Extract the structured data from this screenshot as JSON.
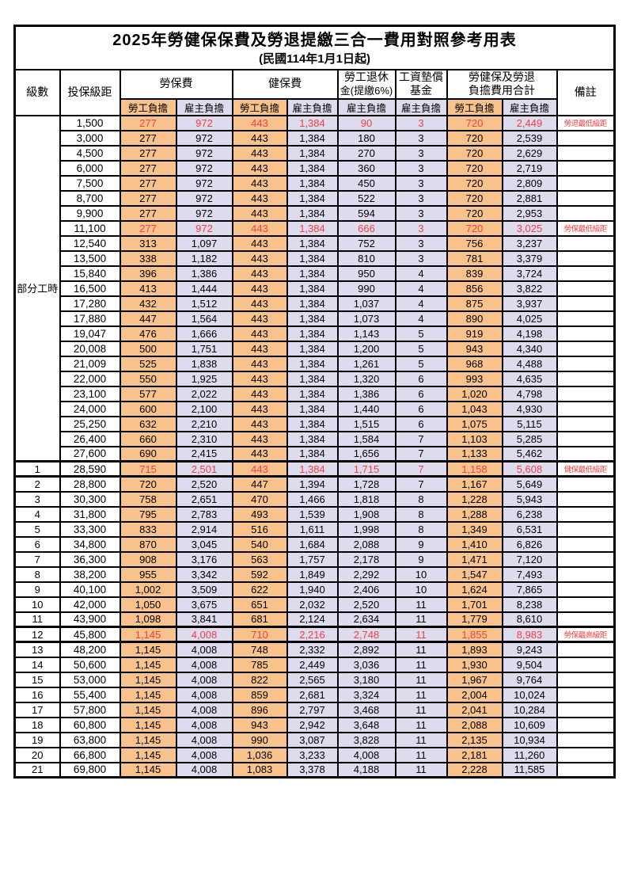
{
  "page": {
    "title": "2025年勞健保保費及勞退提繳三合一費用對照參考用表",
    "subtitle": "(民國114年1月1日起)"
  },
  "colors": {
    "employee_share_bg": "#f8c28c",
    "employer_share_bg": "#dedbee",
    "highlight_text": "#f03e42",
    "border": "#000000"
  },
  "header": {
    "level": "級數",
    "bracket": "投保級距",
    "labor_fee": "勞保費",
    "health_fee": "健保費",
    "pension": [
      "勞工退休",
      "金(提繳6%)"
    ],
    "wage_fund": [
      "工資墊償",
      "基金"
    ],
    "total": [
      "勞健保及勞退",
      "負擔費用合計"
    ],
    "remark": "備註",
    "employee_share": "勞工負擔",
    "employer_share": "雇主負擔"
  },
  "part_time_label": "部分工時",
  "part_time_rowspan": 23,
  "rows": [
    {
      "bracket": "1,500",
      "values": [
        "277",
        "972",
        "443",
        "1,384",
        "90",
        "3",
        "720",
        "2,449"
      ],
      "remark": "勞退最低級距",
      "highlight": true
    },
    {
      "bracket": "3,000",
      "values": [
        "277",
        "972",
        "443",
        "1,384",
        "180",
        "3",
        "720",
        "2,539"
      ]
    },
    {
      "bracket": "4,500",
      "values": [
        "277",
        "972",
        "443",
        "1,384",
        "270",
        "3",
        "720",
        "2,629"
      ]
    },
    {
      "bracket": "6,000",
      "values": [
        "277",
        "972",
        "443",
        "1,384",
        "360",
        "3",
        "720",
        "2,719"
      ]
    },
    {
      "bracket": "7,500",
      "values": [
        "277",
        "972",
        "443",
        "1,384",
        "450",
        "3",
        "720",
        "2,809"
      ]
    },
    {
      "bracket": "8,700",
      "values": [
        "277",
        "972",
        "443",
        "1,384",
        "522",
        "3",
        "720",
        "2,881"
      ]
    },
    {
      "bracket": "9,900",
      "values": [
        "277",
        "972",
        "443",
        "1,384",
        "594",
        "3",
        "720",
        "2,953"
      ]
    },
    {
      "bracket": "11,100",
      "values": [
        "277",
        "972",
        "443",
        "1,384",
        "666",
        "3",
        "720",
        "3,025"
      ],
      "remark": "勞保最低級距",
      "highlight": true
    },
    {
      "bracket": "12,540",
      "values": [
        "313",
        "1,097",
        "443",
        "1,384",
        "752",
        "3",
        "756",
        "3,237"
      ]
    },
    {
      "bracket": "13,500",
      "values": [
        "338",
        "1,182",
        "443",
        "1,384",
        "810",
        "3",
        "781",
        "3,379"
      ]
    },
    {
      "bracket": "15,840",
      "values": [
        "396",
        "1,386",
        "443",
        "1,384",
        "950",
        "4",
        "839",
        "3,724"
      ]
    },
    {
      "bracket": "16,500",
      "values": [
        "413",
        "1,444",
        "443",
        "1,384",
        "990",
        "4",
        "856",
        "3,822"
      ]
    },
    {
      "bracket": "17,280",
      "values": [
        "432",
        "1,512",
        "443",
        "1,384",
        "1,037",
        "4",
        "875",
        "3,937"
      ]
    },
    {
      "bracket": "17,880",
      "values": [
        "447",
        "1,564",
        "443",
        "1,384",
        "1,073",
        "4",
        "890",
        "4,025"
      ]
    },
    {
      "bracket": "19,047",
      "values": [
        "476",
        "1,666",
        "443",
        "1,384",
        "1,143",
        "5",
        "919",
        "4,198"
      ]
    },
    {
      "bracket": "20,008",
      "values": [
        "500",
        "1,751",
        "443",
        "1,384",
        "1,200",
        "5",
        "943",
        "4,340"
      ]
    },
    {
      "bracket": "21,009",
      "values": [
        "525",
        "1,838",
        "443",
        "1,384",
        "1,261",
        "5",
        "968",
        "4,488"
      ]
    },
    {
      "bracket": "22,000",
      "values": [
        "550",
        "1,925",
        "443",
        "1,384",
        "1,320",
        "6",
        "993",
        "4,635"
      ]
    },
    {
      "bracket": "23,100",
      "values": [
        "577",
        "2,022",
        "443",
        "1,384",
        "1,386",
        "6",
        "1,020",
        "4,798"
      ]
    },
    {
      "bracket": "24,000",
      "values": [
        "600",
        "2,100",
        "443",
        "1,384",
        "1,440",
        "6",
        "1,043",
        "4,930"
      ]
    },
    {
      "bracket": "25,250",
      "values": [
        "632",
        "2,210",
        "443",
        "1,384",
        "1,515",
        "6",
        "1,075",
        "5,115"
      ]
    },
    {
      "bracket": "26,400",
      "values": [
        "660",
        "2,310",
        "443",
        "1,384",
        "1,584",
        "7",
        "1,103",
        "5,285"
      ]
    },
    {
      "bracket": "27,600",
      "values": [
        "690",
        "2,415",
        "443",
        "1,384",
        "1,656",
        "7",
        "1,133",
        "5,462"
      ]
    },
    {
      "level": "1",
      "bracket": "28,590",
      "values": [
        "715",
        "2,501",
        "443",
        "1,384",
        "1,715",
        "7",
        "1,158",
        "5,608"
      ],
      "remark": "健保最低級距",
      "highlight": true,
      "emphasis": true
    },
    {
      "level": "2",
      "bracket": "28,800",
      "values": [
        "720",
        "2,520",
        "447",
        "1,394",
        "1,728",
        "7",
        "1,167",
        "5,649"
      ]
    },
    {
      "level": "3",
      "bracket": "30,300",
      "values": [
        "758",
        "2,651",
        "470",
        "1,466",
        "1,818",
        "8",
        "1,228",
        "5,943"
      ]
    },
    {
      "level": "4",
      "bracket": "31,800",
      "values": [
        "795",
        "2,783",
        "493",
        "1,539",
        "1,908",
        "8",
        "1,288",
        "6,238"
      ]
    },
    {
      "level": "5",
      "bracket": "33,300",
      "values": [
        "833",
        "2,914",
        "516",
        "1,611",
        "1,998",
        "8",
        "1,349",
        "6,531"
      ]
    },
    {
      "level": "6",
      "bracket": "34,800",
      "values": [
        "870",
        "3,045",
        "540",
        "1,684",
        "2,088",
        "9",
        "1,410",
        "6,826"
      ]
    },
    {
      "level": "7",
      "bracket": "36,300",
      "values": [
        "908",
        "3,176",
        "563",
        "1,757",
        "2,178",
        "9",
        "1,471",
        "7,120"
      ]
    },
    {
      "level": "8",
      "bracket": "38,200",
      "values": [
        "955",
        "3,342",
        "592",
        "1,849",
        "2,292",
        "10",
        "1,547",
        "7,493"
      ]
    },
    {
      "level": "9",
      "bracket": "40,100",
      "values": [
        "1,002",
        "3,509",
        "622",
        "1,940",
        "2,406",
        "10",
        "1,624",
        "7,865"
      ]
    },
    {
      "level": "10",
      "bracket": "42,000",
      "values": [
        "1,050",
        "3,675",
        "651",
        "2,032",
        "2,520",
        "11",
        "1,701",
        "8,238"
      ]
    },
    {
      "level": "11",
      "bracket": "43,900",
      "values": [
        "1,098",
        "3,841",
        "681",
        "2,124",
        "2,634",
        "11",
        "1,779",
        "8,610"
      ]
    },
    {
      "level": "12",
      "bracket": "45,800",
      "values": [
        "1,145",
        "4,008",
        "710",
        "2,216",
        "2,748",
        "11",
        "1,855",
        "8,983"
      ],
      "remark": "勞保最高級距",
      "highlight": true,
      "emphasis": true
    },
    {
      "level": "13",
      "bracket": "48,200",
      "values": [
        "1,145",
        "4,008",
        "748",
        "2,332",
        "2,892",
        "11",
        "1,893",
        "9,243"
      ]
    },
    {
      "level": "14",
      "bracket": "50,600",
      "values": [
        "1,145",
        "4,008",
        "785",
        "2,449",
        "3,036",
        "11",
        "1,930",
        "9,504"
      ]
    },
    {
      "level": "15",
      "bracket": "53,000",
      "values": [
        "1,145",
        "4,008",
        "822",
        "2,565",
        "3,180",
        "11",
        "1,967",
        "9,764"
      ]
    },
    {
      "level": "16",
      "bracket": "55,400",
      "values": [
        "1,145",
        "4,008",
        "859",
        "2,681",
        "3,324",
        "11",
        "2,004",
        "10,024"
      ]
    },
    {
      "level": "17",
      "bracket": "57,800",
      "values": [
        "1,145",
        "4,008",
        "896",
        "2,797",
        "3,468",
        "11",
        "2,041",
        "10,284"
      ]
    },
    {
      "level": "18",
      "bracket": "60,800",
      "values": [
        "1,145",
        "4,008",
        "943",
        "2,942",
        "3,648",
        "11",
        "2,088",
        "10,609"
      ]
    },
    {
      "level": "19",
      "bracket": "63,800",
      "values": [
        "1,145",
        "4,008",
        "990",
        "3,087",
        "3,828",
        "11",
        "2,135",
        "10,934"
      ]
    },
    {
      "level": "20",
      "bracket": "66,800",
      "values": [
        "1,145",
        "4,008",
        "1,036",
        "3,233",
        "4,008",
        "11",
        "2,181",
        "11,260"
      ]
    },
    {
      "level": "21",
      "bracket": "69,800",
      "values": [
        "1,145",
        "4,008",
        "1,083",
        "3,378",
        "4,188",
        "11",
        "2,228",
        "11,585"
      ]
    }
  ]
}
